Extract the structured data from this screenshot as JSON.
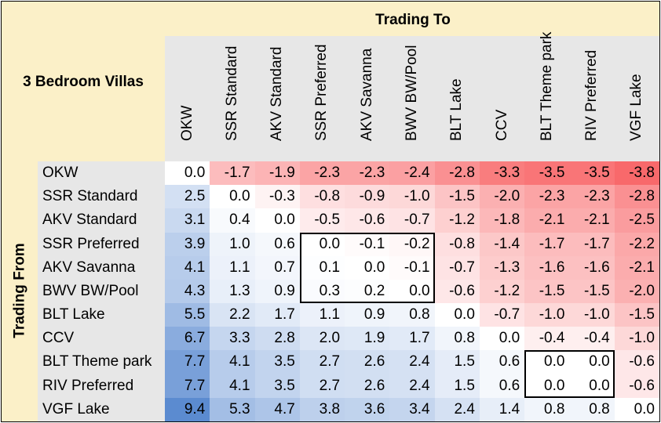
{
  "chart_data": {
    "type": "heatmap",
    "title": "Trading To",
    "corner_label": "3 Bedroom Villas",
    "xlabel": "Trading To",
    "ylabel": "Trading From",
    "columns": [
      "OKW",
      "SSR Standard",
      "AKV Standard",
      "SSR Preferred",
      "AKV Savanna",
      "BWV BW/Pool",
      "BLT Lake",
      "CCV",
      "BLT Theme park",
      "RIV Preferred",
      "VGF Lake"
    ],
    "rows": [
      "OKW",
      "SSR Standard",
      "AKV Standard",
      "SSR Preferred",
      "AKV Savanna",
      "BWV BW/Pool",
      "BLT Lake",
      "CCV",
      "BLT Theme park",
      "RIV Preferred",
      "VGF Lake"
    ],
    "values": [
      [
        0.0,
        -1.7,
        -1.9,
        -2.3,
        -2.3,
        -2.4,
        -2.8,
        -3.3,
        -3.5,
        -3.5,
        -3.8
      ],
      [
        2.5,
        0.0,
        -0.3,
        -0.8,
        -0.9,
        -1.0,
        -1.5,
        -2.0,
        -2.3,
        -2.3,
        -2.8
      ],
      [
        3.1,
        0.4,
        0.0,
        -0.5,
        -0.6,
        -0.7,
        -1.2,
        -1.8,
        -2.1,
        -2.1,
        -2.5
      ],
      [
        3.9,
        1.0,
        0.6,
        0.0,
        -0.1,
        -0.2,
        -0.8,
        -1.4,
        -1.7,
        -1.7,
        -2.2
      ],
      [
        4.1,
        1.1,
        0.7,
        0.1,
        0.0,
        -0.1,
        -0.7,
        -1.3,
        -1.6,
        -1.6,
        -2.1
      ],
      [
        4.3,
        1.3,
        0.9,
        0.3,
        0.2,
        0.0,
        -0.6,
        -1.2,
        -1.5,
        -1.5,
        -2.0
      ],
      [
        5.5,
        2.2,
        1.7,
        1.1,
        0.9,
        0.8,
        0.0,
        -0.7,
        -1.0,
        -1.0,
        -1.5
      ],
      [
        6.7,
        3.3,
        2.8,
        2.0,
        1.9,
        1.7,
        0.8,
        0.0,
        -0.4,
        -0.4,
        -1.0
      ],
      [
        7.7,
        4.1,
        3.5,
        2.7,
        2.6,
        2.4,
        1.5,
        0.6,
        0.0,
        0.0,
        -0.6
      ],
      [
        7.7,
        4.1,
        3.5,
        2.7,
        2.6,
        2.4,
        1.5,
        0.6,
        0.0,
        0.0,
        -0.6
      ],
      [
        9.4,
        5.3,
        4.7,
        3.8,
        3.6,
        3.4,
        2.4,
        1.4,
        0.8,
        0.8,
        0.0
      ]
    ],
    "highlight_groups": [
      {
        "rows": [
          3,
          5
        ],
        "cols": [
          3,
          5
        ]
      },
      {
        "rows": [
          8,
          9
        ],
        "cols": [
          8,
          9
        ]
      }
    ],
    "colors": {
      "positive_max": "#5b8bd0",
      "neutral": "#ffffff",
      "negative_max": "#f8696b",
      "header_band": "#e7e7e7",
      "background": "#fbf0c8"
    }
  }
}
